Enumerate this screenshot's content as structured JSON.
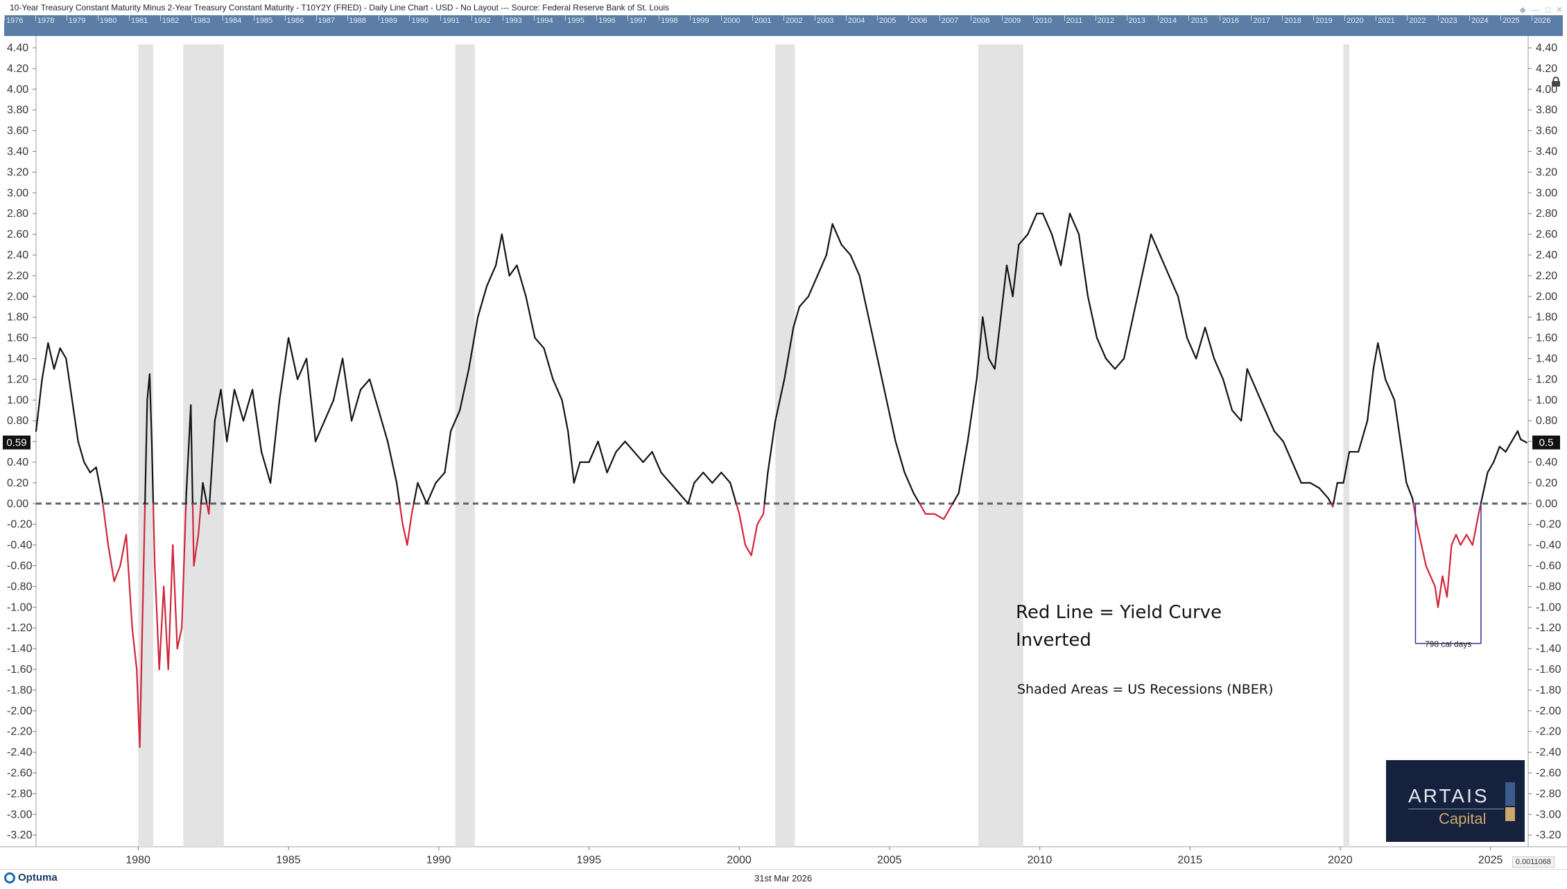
{
  "window": {
    "title": "10-Year Treasury Constant Maturity Minus 2-Year Treasury Constant Maturity - T10Y2Y (FRED) - Daily Line Chart - USD - No Layout --- Source: Federal Reserve Bank of St. Louis",
    "buttons": [
      "pin-icon",
      "minimize-icon",
      "maximize-icon",
      "close-icon"
    ]
  },
  "overview": {
    "years": [
      "1976",
      "1978",
      "1979",
      "1980",
      "1981",
      "1982",
      "1983",
      "1984",
      "1985",
      "1986",
      "1987",
      "1988",
      "1989",
      "1990",
      "1991",
      "1992",
      "1993",
      "1994",
      "1995",
      "1996",
      "1997",
      "1998",
      "1999",
      "2000",
      "2001",
      "2002",
      "2003",
      "2004",
      "2005",
      "2006",
      "2007",
      "2008",
      "2009",
      "2010",
      "2011",
      "2012",
      "2013",
      "2014",
      "2015",
      "2016",
      "2017",
      "2018",
      "2019",
      "2020",
      "2021",
      "2022",
      "2023",
      "2024",
      "2025",
      "2026"
    ]
  },
  "footer": {
    "brand": "Optuma",
    "date": "31st Mar 2026",
    "scale_readout": "0.0011068"
  },
  "annotations": {
    "red_line_note_1": "Red Line = Yield Curve",
    "red_line_note_2": "Inverted",
    "shaded_note": "Shaded Areas = US Recessions (NBER)",
    "measure_label": "798 cal days",
    "last_value_left": "0.59",
    "last_value_right": "0.5"
  },
  "logo": {
    "name": "ARTAIS",
    "sub": "Capital"
  },
  "colors": {
    "positive_line": "#111111",
    "inverted_line": "#d0243a",
    "recession_shade": "#e3e3e3",
    "zero_line": "#5a6370",
    "overview_bg": "#5b7da6",
    "measure_box": "#2d2d9a"
  },
  "chart_data": {
    "type": "line",
    "series_name": "T10Y2Y",
    "x_unit": "year",
    "ylim": [
      -3.3,
      4.5
    ],
    "yticks": [
      4.4,
      4.2,
      4.0,
      3.8,
      3.6,
      3.4,
      3.2,
      3.0,
      2.8,
      2.6,
      2.4,
      2.2,
      2.0,
      1.8,
      1.6,
      1.4,
      1.2,
      1.0,
      0.8,
      0.6,
      0.4,
      0.2,
      0.0,
      -0.2,
      -0.4,
      -0.6,
      -0.8,
      -1.0,
      -1.2,
      -1.4,
      -1.6,
      -1.8,
      -2.0,
      -2.2,
      -2.4,
      -2.6,
      -2.8,
      -3.0,
      -3.2
    ],
    "xticks": [
      1980,
      1985,
      1990,
      1995,
      2000,
      2005,
      2010,
      2015,
      2020,
      2025
    ],
    "xlim": [
      1976.6,
      2026.25
    ],
    "recessions": [
      [
        1980.0,
        1980.5
      ],
      [
        1981.5,
        1982.85
      ],
      [
        1990.55,
        1991.2
      ],
      [
        2001.2,
        2001.85
      ],
      [
        2007.95,
        2009.45
      ],
      [
        2020.1,
        2020.3
      ]
    ],
    "measure": {
      "start": 2022.5,
      "end": 2024.68,
      "label": "798 cal days"
    },
    "points": [
      [
        1976.6,
        0.7
      ],
      [
        1976.8,
        1.2
      ],
      [
        1977.0,
        1.55
      ],
      [
        1977.2,
        1.3
      ],
      [
        1977.4,
        1.5
      ],
      [
        1977.6,
        1.4
      ],
      [
        1977.8,
        1.0
      ],
      [
        1978.0,
        0.6
      ],
      [
        1978.2,
        0.4
      ],
      [
        1978.4,
        0.3
      ],
      [
        1978.6,
        0.35
      ],
      [
        1978.8,
        0.05
      ],
      [
        1979.0,
        -0.4
      ],
      [
        1979.2,
        -0.75
      ],
      [
        1979.4,
        -0.6
      ],
      [
        1979.6,
        -0.3
      ],
      [
        1979.8,
        -1.2
      ],
      [
        1979.95,
        -1.6
      ],
      [
        1980.05,
        -2.35
      ],
      [
        1980.15,
        -1.0
      ],
      [
        1980.3,
        1.0
      ],
      [
        1980.38,
        1.25
      ],
      [
        1980.45,
        0.6
      ],
      [
        1980.55,
        -0.6
      ],
      [
        1980.7,
        -1.6
      ],
      [
        1980.85,
        -0.8
      ],
      [
        1981.0,
        -1.6
      ],
      [
        1981.15,
        -0.4
      ],
      [
        1981.3,
        -1.4
      ],
      [
        1981.45,
        -1.2
      ],
      [
        1981.6,
        0.1
      ],
      [
        1981.75,
        0.95
      ],
      [
        1981.85,
        -0.6
      ],
      [
        1982.0,
        -0.3
      ],
      [
        1982.15,
        0.2
      ],
      [
        1982.35,
        -0.1
      ],
      [
        1982.55,
        0.8
      ],
      [
        1982.75,
        1.1
      ],
      [
        1982.95,
        0.6
      ],
      [
        1983.2,
        1.1
      ],
      [
        1983.5,
        0.8
      ],
      [
        1983.8,
        1.1
      ],
      [
        1984.1,
        0.5
      ],
      [
        1984.4,
        0.2
      ],
      [
        1984.7,
        1.0
      ],
      [
        1985.0,
        1.6
      ],
      [
        1985.3,
        1.2
      ],
      [
        1985.6,
        1.4
      ],
      [
        1985.9,
        0.6
      ],
      [
        1986.2,
        0.8
      ],
      [
        1986.5,
        1.0
      ],
      [
        1986.8,
        1.4
      ],
      [
        1987.1,
        0.8
      ],
      [
        1987.4,
        1.1
      ],
      [
        1987.7,
        1.2
      ],
      [
        1988.0,
        0.9
      ],
      [
        1988.3,
        0.6
      ],
      [
        1988.6,
        0.2
      ],
      [
        1988.8,
        -0.2
      ],
      [
        1988.95,
        -0.4
      ],
      [
        1989.1,
        -0.1
      ],
      [
        1989.3,
        0.2
      ],
      [
        1989.6,
        0.0
      ],
      [
        1989.9,
        0.2
      ],
      [
        1990.2,
        0.3
      ],
      [
        1990.4,
        0.7
      ],
      [
        1990.7,
        0.9
      ],
      [
        1991.0,
        1.3
      ],
      [
        1991.3,
        1.8
      ],
      [
        1991.6,
        2.1
      ],
      [
        1991.9,
        2.3
      ],
      [
        1992.1,
        2.6
      ],
      [
        1992.35,
        2.2
      ],
      [
        1992.6,
        2.3
      ],
      [
        1992.9,
        2.0
      ],
      [
        1993.2,
        1.6
      ],
      [
        1993.5,
        1.5
      ],
      [
        1993.8,
        1.2
      ],
      [
        1994.1,
        1.0
      ],
      [
        1994.3,
        0.7
      ],
      [
        1994.5,
        0.2
      ],
      [
        1994.7,
        0.4
      ],
      [
        1995.0,
        0.4
      ],
      [
        1995.3,
        0.6
      ],
      [
        1995.6,
        0.3
      ],
      [
        1995.9,
        0.5
      ],
      [
        1996.2,
        0.6
      ],
      [
        1996.5,
        0.5
      ],
      [
        1996.8,
        0.4
      ],
      [
        1997.1,
        0.5
      ],
      [
        1997.4,
        0.3
      ],
      [
        1997.7,
        0.2
      ],
      [
        1998.0,
        0.1
      ],
      [
        1998.3,
        0.0
      ],
      [
        1998.5,
        0.2
      ],
      [
        1998.8,
        0.3
      ],
      [
        1999.1,
        0.2
      ],
      [
        1999.4,
        0.3
      ],
      [
        1999.7,
        0.2
      ],
      [
        2000.0,
        -0.1
      ],
      [
        2000.2,
        -0.4
      ],
      [
        2000.4,
        -0.5
      ],
      [
        2000.6,
        -0.2
      ],
      [
        2000.8,
        -0.1
      ],
      [
        2000.95,
        0.3
      ],
      [
        2001.2,
        0.8
      ],
      [
        2001.5,
        1.2
      ],
      [
        2001.8,
        1.7
      ],
      [
        2002.0,
        1.9
      ],
      [
        2002.3,
        2.0
      ],
      [
        2002.6,
        2.2
      ],
      [
        2002.9,
        2.4
      ],
      [
        2003.1,
        2.7
      ],
      [
        2003.4,
        2.5
      ],
      [
        2003.7,
        2.4
      ],
      [
        2004.0,
        2.2
      ],
      [
        2004.3,
        1.8
      ],
      [
        2004.6,
        1.4
      ],
      [
        2004.9,
        1.0
      ],
      [
        2005.2,
        0.6
      ],
      [
        2005.5,
        0.3
      ],
      [
        2005.8,
        0.1
      ],
      [
        2006.0,
        0.0
      ],
      [
        2006.2,
        -0.1
      ],
      [
        2006.5,
        -0.1
      ],
      [
        2006.8,
        -0.15
      ],
      [
        2007.0,
        -0.05
      ],
      [
        2007.3,
        0.1
      ],
      [
        2007.6,
        0.6
      ],
      [
        2007.9,
        1.2
      ],
      [
        2008.1,
        1.8
      ],
      [
        2008.3,
        1.4
      ],
      [
        2008.5,
        1.3
      ],
      [
        2008.7,
        1.8
      ],
      [
        2008.9,
        2.3
      ],
      [
        2009.1,
        2.0
      ],
      [
        2009.3,
        2.5
      ],
      [
        2009.6,
        2.6
      ],
      [
        2009.9,
        2.8
      ],
      [
        2010.1,
        2.8
      ],
      [
        2010.4,
        2.6
      ],
      [
        2010.7,
        2.3
      ],
      [
        2011.0,
        2.8
      ],
      [
        2011.3,
        2.6
      ],
      [
        2011.6,
        2.0
      ],
      [
        2011.9,
        1.6
      ],
      [
        2012.2,
        1.4
      ],
      [
        2012.5,
        1.3
      ],
      [
        2012.8,
        1.4
      ],
      [
        2013.1,
        1.8
      ],
      [
        2013.4,
        2.2
      ],
      [
        2013.7,
        2.6
      ],
      [
        2014.0,
        2.4
      ],
      [
        2014.3,
        2.2
      ],
      [
        2014.6,
        2.0
      ],
      [
        2014.9,
        1.6
      ],
      [
        2015.2,
        1.4
      ],
      [
        2015.5,
        1.7
      ],
      [
        2015.8,
        1.4
      ],
      [
        2016.1,
        1.2
      ],
      [
        2016.4,
        0.9
      ],
      [
        2016.7,
        0.8
      ],
      [
        2016.9,
        1.3
      ],
      [
        2017.2,
        1.1
      ],
      [
        2017.5,
        0.9
      ],
      [
        2017.8,
        0.7
      ],
      [
        2018.1,
        0.6
      ],
      [
        2018.4,
        0.4
      ],
      [
        2018.7,
        0.2
      ],
      [
        2019.0,
        0.2
      ],
      [
        2019.3,
        0.15
      ],
      [
        2019.6,
        0.05
      ],
      [
        2019.75,
        -0.03
      ],
      [
        2019.9,
        0.2
      ],
      [
        2020.1,
        0.2
      ],
      [
        2020.3,
        0.5
      ],
      [
        2020.6,
        0.5
      ],
      [
        2020.9,
        0.8
      ],
      [
        2021.1,
        1.3
      ],
      [
        2021.25,
        1.55
      ],
      [
        2021.5,
        1.2
      ],
      [
        2021.8,
        1.0
      ],
      [
        2022.0,
        0.6
      ],
      [
        2022.2,
        0.2
      ],
      [
        2022.4,
        0.05
      ],
      [
        2022.55,
        -0.2
      ],
      [
        2022.7,
        -0.4
      ],
      [
        2022.85,
        -0.6
      ],
      [
        2023.0,
        -0.7
      ],
      [
        2023.15,
        -0.8
      ],
      [
        2023.25,
        -1.0
      ],
      [
        2023.4,
        -0.7
      ],
      [
        2023.55,
        -0.9
      ],
      [
        2023.7,
        -0.4
      ],
      [
        2023.85,
        -0.3
      ],
      [
        2024.0,
        -0.4
      ],
      [
        2024.2,
        -0.3
      ],
      [
        2024.4,
        -0.4
      ],
      [
        2024.6,
        -0.1
      ],
      [
        2024.75,
        0.1
      ],
      [
        2024.9,
        0.3
      ],
      [
        2025.1,
        0.4
      ],
      [
        2025.3,
        0.55
      ],
      [
        2025.5,
        0.5
      ],
      [
        2025.7,
        0.6
      ],
      [
        2025.9,
        0.7
      ],
      [
        2026.0,
        0.62
      ],
      [
        2026.2,
        0.59
      ]
    ]
  }
}
